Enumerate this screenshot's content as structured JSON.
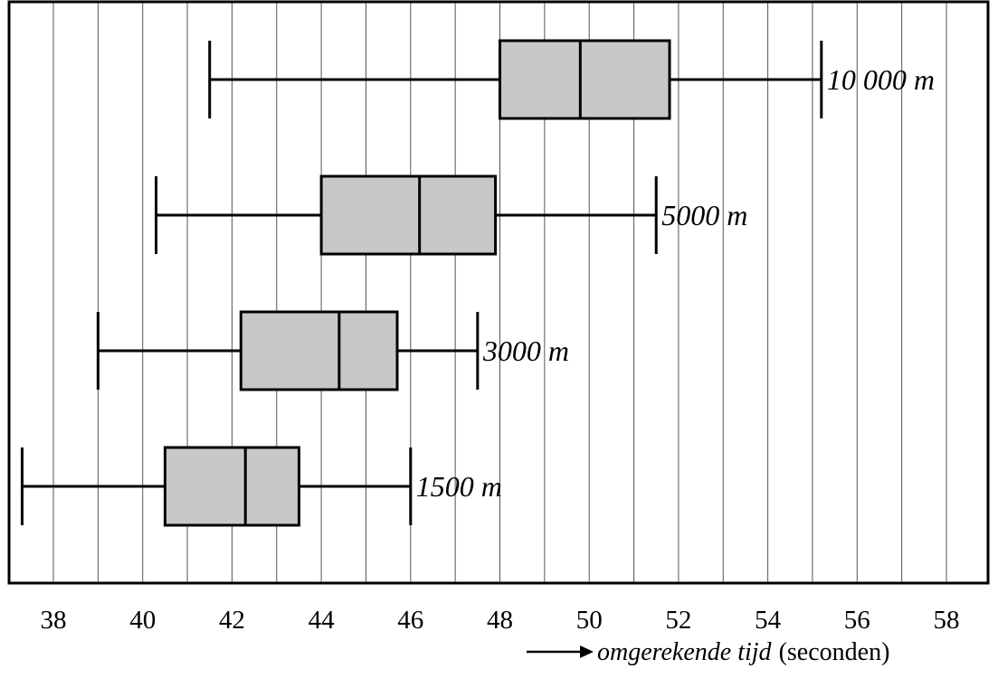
{
  "chart_data": {
    "type": "boxplot",
    "orientation": "horizontal",
    "xlim": [
      37,
      59.2
    ],
    "xticks": [
      38,
      40,
      42,
      44,
      46,
      48,
      50,
      52,
      54,
      56,
      58
    ],
    "grid": true,
    "xlabel_italic": "omgerekende tijd",
    "xlabel_unit": "(seconden)",
    "series": [
      {
        "name": "10 000 m",
        "min": 41.5,
        "q1": 48.0,
        "median": 49.8,
        "q3": 51.8,
        "max": 55.2
      },
      {
        "name": "5000 m",
        "min": 40.3,
        "q1": 44.0,
        "median": 46.2,
        "q3": 47.9,
        "max": 51.5
      },
      {
        "name": "3000 m",
        "min": 39.0,
        "q1": 42.2,
        "median": 44.4,
        "q3": 45.7,
        "max": 47.5
      },
      {
        "name": "1500 m",
        "min": 37.3,
        "q1": 40.5,
        "median": 42.3,
        "q3": 43.5,
        "max": 46.0
      }
    ],
    "colors": {
      "box_fill": "#c8c8c8",
      "stroke": "#000000",
      "grid": "#555555"
    }
  }
}
